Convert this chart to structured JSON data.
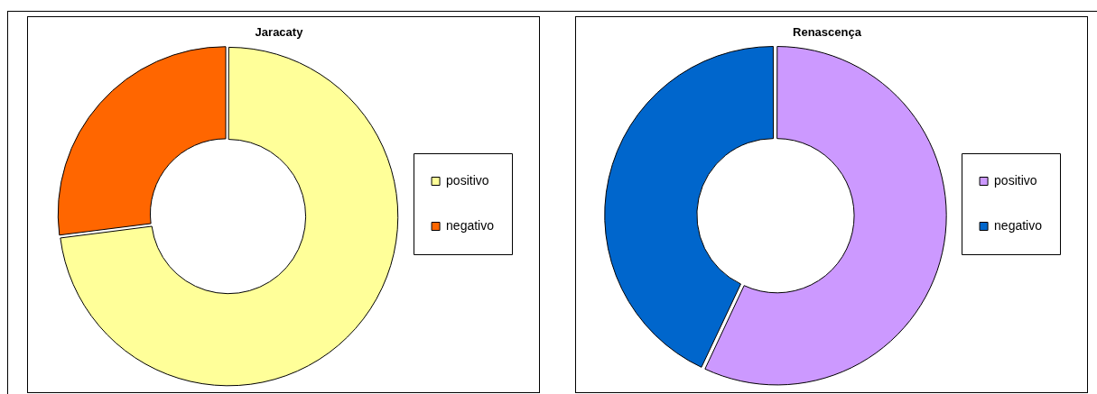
{
  "chart_data": [
    {
      "type": "donut",
      "title": "Jaracaty",
      "categories": [
        "positivo",
        "negativo"
      ],
      "values": [
        73,
        27
      ],
      "colors": [
        "#ffff99",
        "#ff6600"
      ],
      "legend": "right"
    },
    {
      "type": "donut",
      "title": "Renascença",
      "categories": [
        "positivo",
        "negativo"
      ],
      "values": [
        57,
        43
      ],
      "colors": [
        "#cc99ff",
        "#0066cc"
      ],
      "legend": "right"
    }
  ]
}
